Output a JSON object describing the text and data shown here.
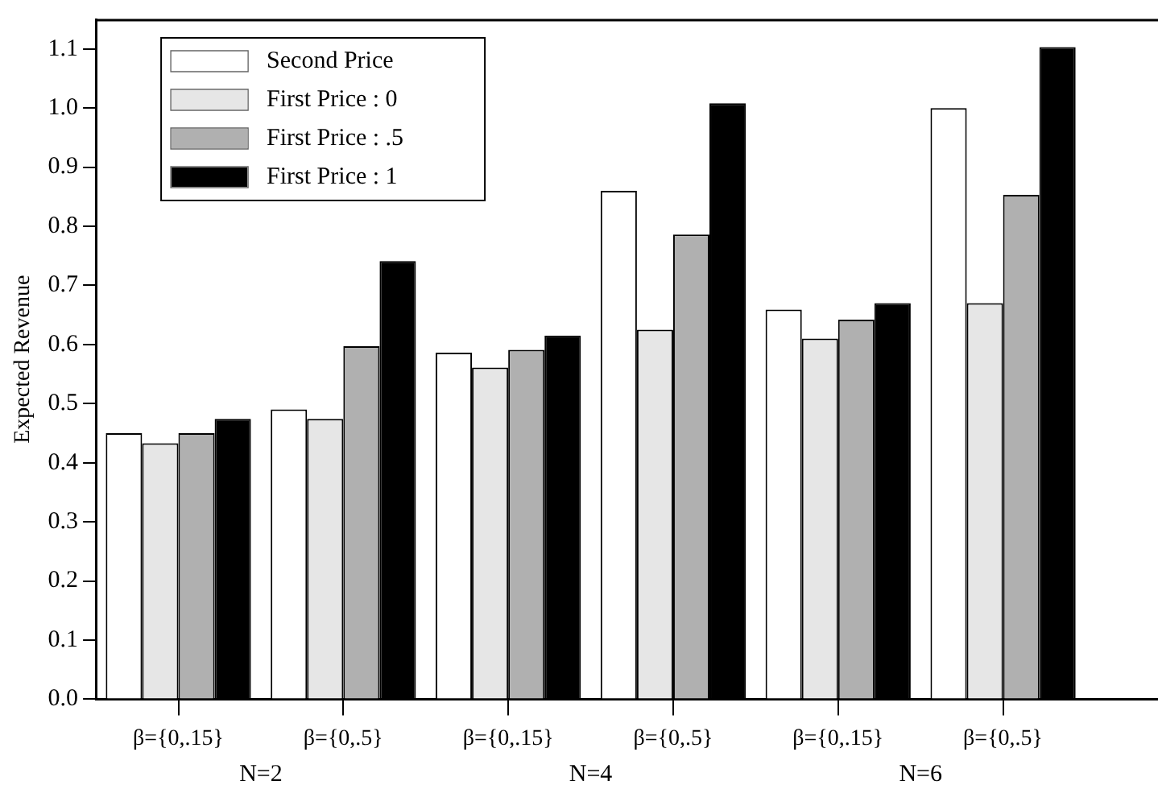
{
  "chart_data": {
    "type": "bar",
    "ylabel": "Expected Revenue",
    "categories": [
      "β={0,.15}",
      "β={0,.5}",
      "β={0,.15}",
      "β={0,.5}",
      "β={0,.15}",
      "β={0,.5}"
    ],
    "annotations": [
      "N=2",
      "N=4",
      "N=6"
    ],
    "series": [
      {
        "name": "Second Price",
        "color": "#ffffff",
        "values": [
          0.45,
          0.49,
          0.586,
          0.86,
          0.659,
          1.0
        ]
      },
      {
        "name": "First Price : 0",
        "color": "#e6e6e6",
        "values": [
          0.433,
          0.474,
          0.561,
          0.625,
          0.61,
          0.67
        ]
      },
      {
        "name": "First Price : .5",
        "color": "#b0b0b0",
        "values": [
          0.45,
          0.597,
          0.591,
          0.786,
          0.642,
          0.853
        ]
      },
      {
        "name": "First Price : 1",
        "color": "#000000",
        "values": [
          0.474,
          0.741,
          0.615,
          1.008,
          0.67,
          1.103
        ]
      }
    ],
    "ylim": [
      0,
      1.15
    ],
    "yticks": [
      {
        "value": 0,
        "label": "0.0"
      },
      0.1,
      0.2,
      0.3,
      0.4,
      0.5,
      0.6,
      0.7,
      0.8,
      0.9,
      {
        "value": 1,
        "label": "1.0"
      },
      1.1
    ],
    "grid": false,
    "legend": "top left"
  }
}
